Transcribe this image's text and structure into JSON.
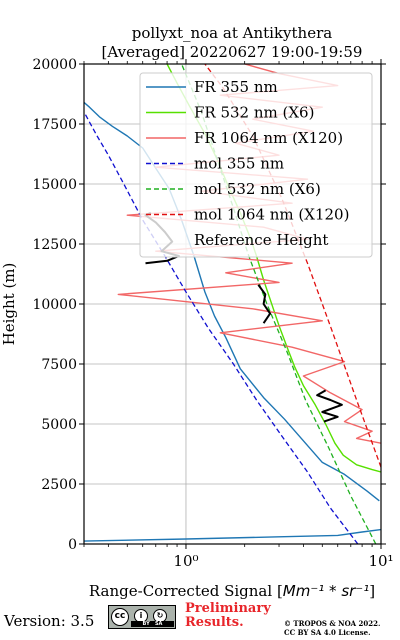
{
  "chart_data": {
    "type": "line",
    "title": [
      "pollyxt_noa at Antikythera",
      "[Averaged] 20220627 19:00-19:59"
    ],
    "xlabel_prefix": "Range-Corrected Signal [",
    "xlabel_units": "Mm⁻¹ * sr⁻¹",
    "xlabel_suffix": "]",
    "ylabel": "Height (m)",
    "xscale": "log",
    "xlim": [
      0.3,
      10
    ],
    "ylim": [
      0,
      20000
    ],
    "grid": true,
    "legend_position": "upper-right",
    "xticks": [
      {
        "value": 1,
        "label": "10⁰"
      },
      {
        "value": 10,
        "label": "10¹"
      }
    ],
    "yticks": [
      0,
      2500,
      5000,
      7500,
      10000,
      12500,
      15000,
      17500,
      20000
    ],
    "series": [
      {
        "name": "FR 355 nm",
        "color": "#1f77b4",
        "style": "solid",
        "points": [
          [
            0.3,
            120
          ],
          [
            1.0,
            210
          ],
          [
            3.0,
            300
          ],
          [
            6.0,
            360
          ],
          [
            8.0,
            500
          ],
          [
            10.0,
            600
          ]
        ]
      },
      {
        "name": "FR 355 nm",
        "color": "#1f77b4",
        "style": "solid",
        "points": [
          [
            9.8,
            1800
          ],
          [
            8.5,
            2200
          ],
          [
            6.5,
            2900
          ],
          [
            5.0,
            3400
          ],
          [
            4.0,
            4300
          ],
          [
            3.2,
            5200
          ],
          [
            2.5,
            6100
          ],
          [
            1.9,
            7300
          ],
          [
            1.6,
            8600
          ],
          [
            1.4,
            9500
          ],
          [
            1.25,
            10500
          ],
          [
            1.1,
            12000
          ],
          [
            0.95,
            13500
          ],
          [
            0.82,
            14800
          ],
          [
            0.72,
            15500
          ],
          [
            0.6,
            16500
          ],
          [
            0.5,
            17000
          ],
          [
            0.42,
            17400
          ],
          [
            0.36,
            17800
          ],
          [
            0.32,
            18200
          ],
          [
            0.3,
            18400
          ]
        ]
      },
      {
        "name": "FR 532 nm (X6)",
        "color": "#57e000",
        "style": "solid",
        "points": [
          [
            10.0,
            3000
          ],
          [
            9.0,
            3100
          ],
          [
            7.5,
            3300
          ],
          [
            6.4,
            3700
          ],
          [
            5.8,
            4200
          ],
          [
            5.2,
            5000
          ],
          [
            4.6,
            5800
          ],
          [
            4.0,
            6600
          ],
          [
            3.6,
            7400
          ],
          [
            3.3,
            8200
          ],
          [
            3.0,
            9100
          ],
          [
            2.7,
            10200
          ],
          [
            2.5,
            11000
          ],
          [
            2.3,
            12000
          ],
          [
            2.15,
            12700
          ],
          [
            1.9,
            13800
          ],
          [
            1.65,
            14900
          ],
          [
            1.45,
            16000
          ],
          [
            1.25,
            17100
          ],
          [
            1.05,
            18200
          ],
          [
            0.9,
            19200
          ],
          [
            0.8,
            20000
          ]
        ]
      },
      {
        "name": "FR 1064 nm (X120)",
        "color": "#f26767",
        "style": "solid",
        "points": [
          [
            10.0,
            4200
          ],
          [
            7.5,
            4400
          ],
          [
            9.0,
            4700
          ],
          [
            6.5,
            5100
          ],
          [
            8.0,
            5600
          ],
          [
            5.5,
            6300
          ],
          [
            4.0,
            7000
          ],
          [
            6.5,
            7600
          ],
          [
            3.5,
            8200
          ],
          [
            1.5,
            8800
          ],
          [
            5.0,
            9300
          ],
          [
            2.2,
            9800
          ],
          [
            0.45,
            10400
          ],
          [
            3.0,
            10900
          ],
          [
            1.6,
            11300
          ],
          [
            3.5,
            11700
          ],
          [
            0.7,
            12200
          ],
          [
            4.2,
            12700
          ],
          [
            2.5,
            13200
          ],
          [
            0.5,
            13700
          ],
          [
            3.5,
            14200
          ],
          [
            1.2,
            14700
          ],
          [
            4.2,
            15200
          ],
          [
            0.7,
            15700
          ],
          [
            3.0,
            16200
          ],
          [
            1.8,
            16700
          ],
          [
            4.5,
            17200
          ],
          [
            2.2,
            17700
          ],
          [
            5.0,
            18200
          ],
          [
            1.5,
            18700
          ],
          [
            6.0,
            19100
          ],
          [
            3.0,
            19600
          ],
          [
            2.0,
            20000
          ]
        ]
      },
      {
        "name": "mol 355 nm",
        "color": "#1010d0",
        "style": "dashed",
        "points": [
          [
            7.6,
            0
          ],
          [
            5.5,
            1500
          ],
          [
            4.2,
            3000
          ],
          [
            3.1,
            4500
          ],
          [
            2.3,
            6000
          ],
          [
            1.75,
            7500
          ],
          [
            1.3,
            9000
          ],
          [
            1.0,
            10500
          ],
          [
            0.78,
            12000
          ],
          [
            0.6,
            13500
          ],
          [
            0.48,
            15000
          ],
          [
            0.4,
            16200
          ],
          [
            0.35,
            17000
          ],
          [
            0.3,
            18000
          ]
        ]
      },
      {
        "name": "mol 532 nm (X6)",
        "color": "#20b020",
        "style": "dashed",
        "points": [
          [
            9.4,
            0
          ],
          [
            7.0,
            2000
          ],
          [
            5.4,
            4000
          ],
          [
            4.1,
            6000
          ],
          [
            3.3,
            8000
          ],
          [
            2.6,
            10000
          ],
          [
            2.1,
            12000
          ],
          [
            1.75,
            14000
          ],
          [
            1.45,
            16000
          ],
          [
            1.2,
            18000
          ],
          [
            0.95,
            20000
          ]
        ]
      },
      {
        "name": "mol 1064 nm (X120)",
        "color": "#e11010",
        "style": "dashed",
        "points": [
          [
            10.0,
            3200
          ],
          [
            7.5,
            6000
          ],
          [
            5.6,
            8900
          ],
          [
            4.2,
            11700
          ],
          [
            3.1,
            14400
          ],
          [
            2.2,
            17000
          ],
          [
            1.55,
            19000
          ],
          [
            1.25,
            20000
          ]
        ]
      },
      {
        "name": "Reference Height",
        "color": "#000000",
        "style": "solid",
        "points": [
          [
            0.62,
            11700
          ],
          [
            0.8,
            11800
          ],
          [
            0.92,
            12000
          ],
          [
            0.75,
            12200
          ],
          [
            0.85,
            12600
          ],
          [
            0.78,
            13000
          ],
          [
            0.7,
            13400
          ],
          [
            0.62,
            13700
          ],
          [
            0.66,
            13800
          ]
        ]
      },
      {
        "name": "Reference Height",
        "color": "#000000",
        "style": "solid",
        "points": [
          [
            2.35,
            10800
          ],
          [
            2.55,
            10400
          ],
          [
            2.5,
            10000
          ],
          [
            2.7,
            9600
          ],
          [
            2.5,
            9200
          ]
        ]
      },
      {
        "name": "Reference Height",
        "color": "#000000",
        "style": "solid",
        "points": [
          [
            5.2,
            6400
          ],
          [
            4.7,
            6200
          ],
          [
            5.5,
            6000
          ],
          [
            6.3,
            5800
          ],
          [
            5.0,
            5500
          ],
          [
            6.0,
            5300
          ],
          [
            5.1,
            5100
          ]
        ]
      }
    ],
    "legend": [
      {
        "label": "FR 355 nm",
        "color": "#1f77b4",
        "style": "solid"
      },
      {
        "label": "FR 532 nm (X6)",
        "color": "#57e000",
        "style": "solid"
      },
      {
        "label": "FR 1064 nm (X120)",
        "color": "#f26767",
        "style": "solid"
      },
      {
        "label": "mol 355 nm",
        "color": "#1010d0",
        "style": "dashed"
      },
      {
        "label": "mol 532 nm (X6)",
        "color": "#20b020",
        "style": "dashed"
      },
      {
        "label": "mol 1064 nm (X120)",
        "color": "#e11010",
        "style": "dashed"
      },
      {
        "label": "Reference Height",
        "color": "#000000",
        "style": "solid"
      }
    ]
  },
  "footer": {
    "version": "Version: 3.5",
    "license_badge": {
      "cc": "cc",
      "by": "BY",
      "sa": "SA"
    },
    "preliminary": [
      "Preliminary",
      "Results."
    ],
    "copyright": [
      "© TROPOS & NOA 2022.",
      "CC BY SA 4.0 License."
    ]
  }
}
